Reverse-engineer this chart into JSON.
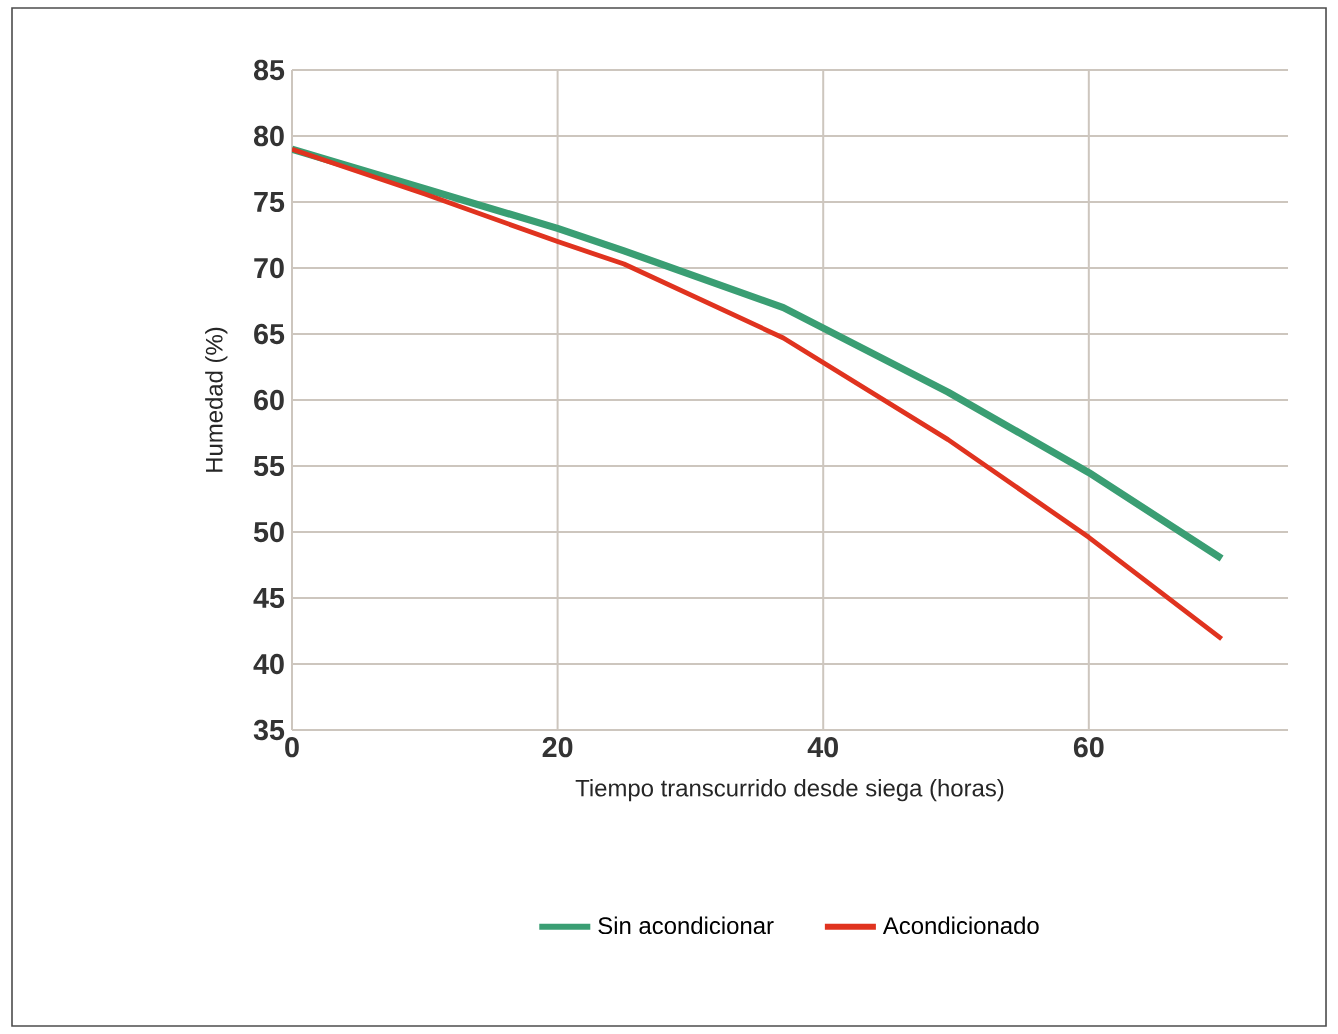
{
  "chart_data": {
    "type": "line",
    "xlabel": "Tiempo transcurrido desde siega (horas)",
    "ylabel": "Humedad (%)",
    "xlim": [
      0,
      75
    ],
    "xticks": [
      0,
      20,
      40,
      60
    ],
    "ylim": [
      35,
      85
    ],
    "yticks": [
      35,
      40,
      45,
      50,
      55,
      60,
      65,
      70,
      75,
      80,
      85
    ],
    "grid": true,
    "legend": "bottom",
    "marker": "none",
    "line_style": "solid",
    "series": [
      {
        "name": "Sin acondicionar",
        "color": "#3a9e73",
        "x": [
          0,
          10,
          20,
          25,
          37,
          49.4,
          60,
          70
        ],
        "values": [
          79,
          76,
          73,
          71.3,
          67,
          60.6,
          54.5,
          48
        ]
      },
      {
        "name": "Acondicionado",
        "color": "#e0331f",
        "x": [
          0,
          10,
          20,
          25,
          37,
          49.4,
          60,
          70
        ],
        "values": [
          79,
          75.6,
          72,
          70.3,
          64.7,
          57,
          49.6,
          41.9
        ]
      }
    ]
  }
}
